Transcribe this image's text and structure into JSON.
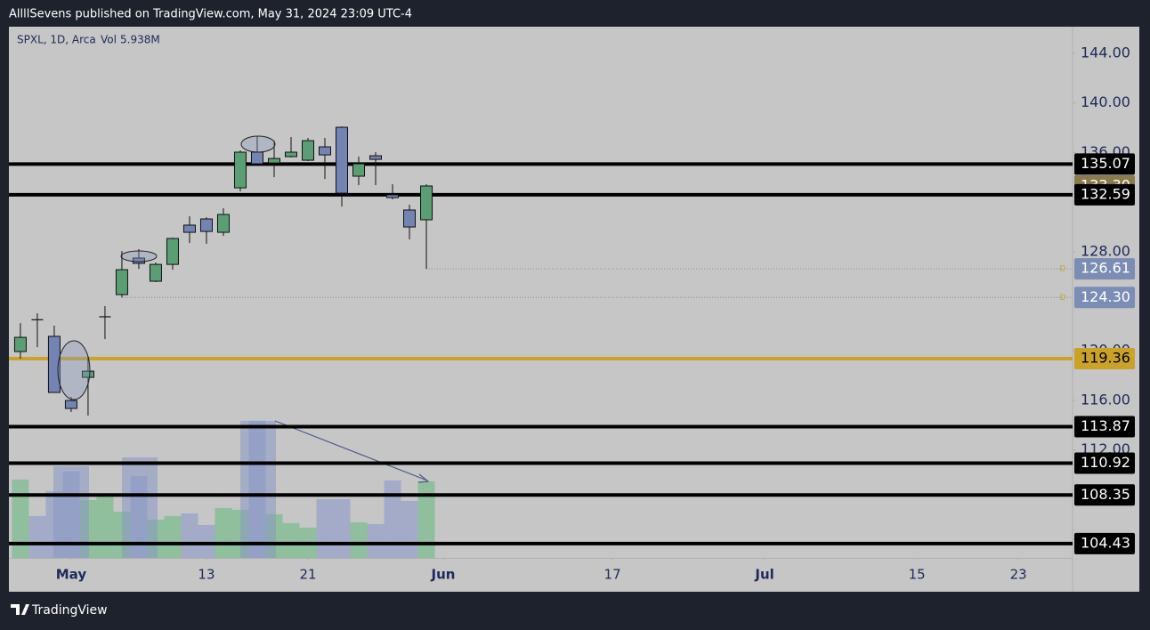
{
  "header": {
    "text": "AllllSevens published on TradingView.com, May 31, 2024 23:09 UTC-4"
  },
  "footer": {
    "brand": "TradingView"
  },
  "chart_data": {
    "type": "candlestick",
    "legend": {
      "symbol": "SPXL, 1D, Arca",
      "volume_title": "Vol"
    },
    "open": [
      119.93,
      122.5,
      121.16,
      115.98,
      117.85,
      122.74,
      124.53,
      127.48,
      125.61,
      126.97,
      130.14,
      130.64,
      129.56,
      133.15,
      136.03,
      135.16,
      135.67,
      135.38,
      136.46,
      138.04,
      134.09,
      135.74,
      132.58,
      131.36,
      130.57
    ],
    "high": [
      122.23,
      123.02,
      122.02,
      116.27,
      119.57,
      123.6,
      128.05,
      128.2,
      127.12,
      129.13,
      130.85,
      130.78,
      131.5,
      136.17,
      137.3,
      136.96,
      137.25,
      137.18,
      137.18,
      138.11,
      135.67,
      136.03,
      133.44,
      131.79,
      133.44
    ],
    "low": [
      119.36,
      120.29,
      116.63,
      115.05,
      114.76,
      120.94,
      124.3,
      126.6,
      125.54,
      126.54,
      128.7,
      128.63,
      129.27,
      132.86,
      135.09,
      134.01,
      135.6,
      135.31,
      133.87,
      131.64,
      133.37,
      133.37,
      132.22,
      128.99,
      126.61
    ],
    "close": [
      121.08,
      122.4,
      116.63,
      115.34,
      118.35,
      122.8,
      126.54,
      127.05,
      126.97,
      129.06,
      129.56,
      129.63,
      131.0,
      136.03,
      135.09,
      135.52,
      136.03,
      136.96,
      135.81,
      132.72,
      135.09,
      135.45,
      132.36,
      129.99,
      133.3
    ],
    "volume": [
      6.08,
      3.25,
      5.18,
      6.7,
      4.49,
      4.83,
      3.59,
      6.36,
      2.97,
      3.25,
      3.45,
      2.56,
      3.87,
      3.73,
      10.64,
      3.39,
      2.7,
      2.35,
      4.56,
      4.56,
      2.76,
      2.63,
      6.01,
      4.42,
      5.938
    ],
    "volume_label": "5.938M",
    "volume_ylim": [
      0,
      41.2
    ],
    "up_color": "#5a9e73",
    "down_color": "#7383b3",
    "volume_up_color": "#8fbf9c",
    "volume_down_color": "#a3abc9",
    "ylim": [
      103.27,
      146.16
    ],
    "yticks": [
      {
        "value": 144,
        "label": "144.00"
      },
      {
        "value": 140,
        "label": "140.00"
      },
      {
        "value": 136,
        "label": "136.00"
      },
      {
        "value": 128,
        "label": "128.00"
      },
      {
        "value": 120,
        "label": "120.00"
      },
      {
        "value": 116,
        "label": "116.00"
      },
      {
        "value": 112,
        "label": "112.00"
      }
    ],
    "xlim": [
      -0.68,
      62.2
    ],
    "xticks": [
      {
        "value": 3,
        "label": "May"
      },
      {
        "value": 11,
        "label": "13"
      },
      {
        "value": 17,
        "label": "21"
      },
      {
        "value": 25,
        "label": "Jun"
      },
      {
        "value": 35,
        "label": "17"
      },
      {
        "value": 44,
        "label": "Jul"
      },
      {
        "value": 53,
        "label": "15"
      },
      {
        "value": 59,
        "label": "23"
      }
    ],
    "levels": [
      {
        "price": 135.07,
        "color": "#000000",
        "text_color": "#ffffff",
        "style": "solid"
      },
      {
        "price": 133.3,
        "price_label": "133.30",
        "color": "#8a7b4c",
        "text_color": "#ffffff",
        "style": "label"
      },
      {
        "price": 132.59,
        "color": "#000000",
        "text_color": "#ffffff",
        "style": "solid"
      },
      {
        "price": 126.61,
        "color": "#7b8db5",
        "text_color": "#ffffff",
        "style": "dotted",
        "marker": "D"
      },
      {
        "price": 124.3,
        "price_label": "124.30",
        "color": "#7b8db5",
        "text_color": "#ffffff",
        "style": "dotted",
        "marker": "D"
      },
      {
        "price": 119.36,
        "color": "#c9a227",
        "text_color": "#000000",
        "style": "solid"
      },
      {
        "price": 113.87,
        "color": "#000000",
        "text_color": "#ffffff",
        "style": "solid"
      },
      {
        "price": 110.92,
        "color": "#000000",
        "text_color": "#ffffff",
        "style": "solid"
      },
      {
        "price": 108.35,
        "color": "#000000",
        "text_color": "#ffffff",
        "style": "solid"
      },
      {
        "price": 104.43,
        "color": "#000000",
        "text_color": "#ffffff",
        "style": "solid"
      }
    ]
  }
}
